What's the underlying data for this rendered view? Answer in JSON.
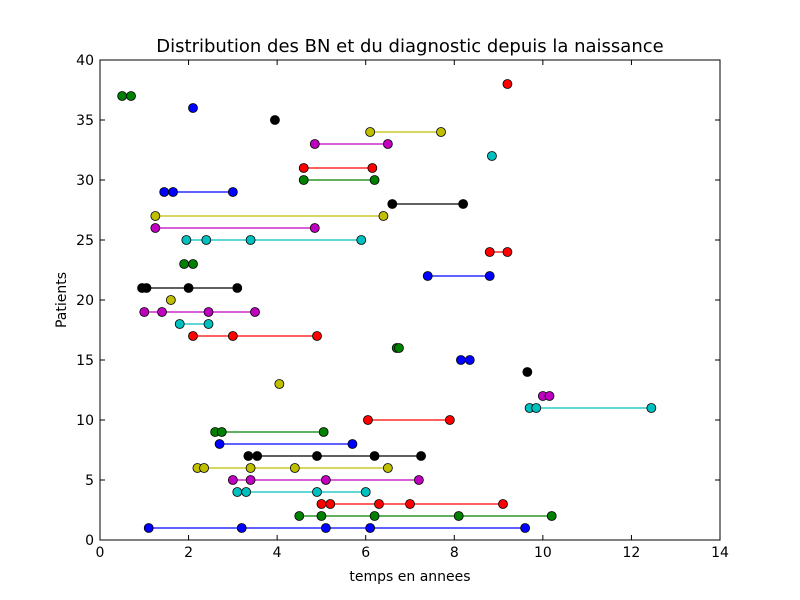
{
  "chart_data": {
    "type": "scatter",
    "title": "Distribution des BN et du diagnostic depuis la naissance",
    "xlabel": "temps en annees",
    "ylabel": "Patients",
    "xlim": [
      0,
      14
    ],
    "ylim": [
      0,
      40
    ],
    "xticks": [
      "0",
      "2",
      "4",
      "6",
      "8",
      "10",
      "12",
      "14"
    ],
    "yticks": [
      "0",
      "5",
      "10",
      "15",
      "20",
      "25",
      "30",
      "35",
      "40"
    ],
    "grid": false,
    "colors": {
      "blue": "#0000ff",
      "green": "#008000",
      "red": "#ff0000",
      "cyan": "#00bfbf",
      "magenta": "#bf00bf",
      "olive": "#bfbf00",
      "black": "#000000"
    },
    "series": [
      {
        "patient": 1,
        "color": "blue",
        "x": [
          1.1,
          3.2,
          5.1,
          6.1,
          9.6
        ]
      },
      {
        "patient": 2,
        "color": "green",
        "x": [
          4.5,
          5.0,
          6.2,
          8.1,
          10.2
        ]
      },
      {
        "patient": 3,
        "color": "red",
        "x": [
          5.0,
          5.2,
          6.3,
          7.0,
          9.1
        ]
      },
      {
        "patient": 4,
        "color": "cyan",
        "x": [
          3.1,
          3.3,
          4.9,
          6.0
        ]
      },
      {
        "patient": 5,
        "color": "magenta",
        "x": [
          3.0,
          3.4,
          5.1,
          7.2
        ]
      },
      {
        "patient": 6,
        "color": "olive",
        "x": [
          2.2,
          2.35,
          3.4,
          4.4,
          6.5
        ]
      },
      {
        "patient": 7,
        "color": "black",
        "x": [
          3.35,
          3.55,
          4.9,
          6.2,
          7.25
        ]
      },
      {
        "patient": 8,
        "color": "blue",
        "x": [
          2.7,
          5.7
        ]
      },
      {
        "patient": 9,
        "color": "green",
        "x": [
          2.6,
          2.75,
          5.05
        ]
      },
      {
        "patient": 10,
        "color": "red",
        "x": [
          6.05,
          7.9
        ]
      },
      {
        "patient": 11,
        "color": "cyan",
        "x": [
          9.7,
          9.85,
          12.45
        ]
      },
      {
        "patient": 12,
        "color": "magenta",
        "x": [
          10.0,
          10.15
        ]
      },
      {
        "patient": 13,
        "color": "olive",
        "x": [
          4.05
        ]
      },
      {
        "patient": 14,
        "color": "black",
        "x": [
          9.65
        ]
      },
      {
        "patient": 15,
        "color": "blue",
        "x": [
          8.15,
          8.35
        ]
      },
      {
        "patient": 16,
        "color": "green",
        "x": [
          6.7,
          6.75
        ]
      },
      {
        "patient": 17,
        "color": "red",
        "x": [
          2.1,
          3.0,
          4.9
        ]
      },
      {
        "patient": 18,
        "color": "cyan",
        "x": [
          1.8,
          2.45
        ]
      },
      {
        "patient": 19,
        "color": "magenta",
        "x": [
          1.0,
          1.4,
          2.45,
          3.5
        ]
      },
      {
        "patient": 20,
        "color": "olive",
        "x": [
          1.6
        ]
      },
      {
        "patient": 21,
        "color": "black",
        "x": [
          0.95,
          1.05,
          2.0,
          3.1
        ]
      },
      {
        "patient": 22,
        "color": "blue",
        "x": [
          7.4,
          8.8
        ]
      },
      {
        "patient": 23,
        "color": "green",
        "x": [
          1.9,
          2.1
        ]
      },
      {
        "patient": 24,
        "color": "red",
        "x": [
          8.8,
          9.2
        ]
      },
      {
        "patient": 25,
        "color": "cyan",
        "x": [
          1.95,
          2.4,
          3.4,
          5.9
        ]
      },
      {
        "patient": 26,
        "color": "magenta",
        "x": [
          1.25,
          4.85
        ]
      },
      {
        "patient": 27,
        "color": "olive",
        "x": [
          1.25,
          6.4
        ]
      },
      {
        "patient": 28,
        "color": "black",
        "x": [
          6.6,
          8.2
        ]
      },
      {
        "patient": 29,
        "color": "blue",
        "x": [
          1.45,
          1.65,
          3.0
        ]
      },
      {
        "patient": 30,
        "color": "green",
        "x": [
          4.6,
          6.2
        ]
      },
      {
        "patient": 31,
        "color": "red",
        "x": [
          4.6,
          6.15
        ]
      },
      {
        "patient": 32,
        "color": "cyan",
        "x": [
          8.85
        ]
      },
      {
        "patient": 33,
        "color": "magenta",
        "x": [
          4.85,
          6.5
        ]
      },
      {
        "patient": 34,
        "color": "olive",
        "x": [
          6.1,
          7.7
        ]
      },
      {
        "patient": 35,
        "color": "black",
        "x": [
          3.95
        ]
      },
      {
        "patient": 36,
        "color": "blue",
        "x": [
          2.1
        ]
      },
      {
        "patient": 37,
        "color": "green",
        "x": [
          0.5,
          0.7
        ]
      },
      {
        "patient": 38,
        "color": "red",
        "x": [
          9.2
        ]
      }
    ]
  }
}
